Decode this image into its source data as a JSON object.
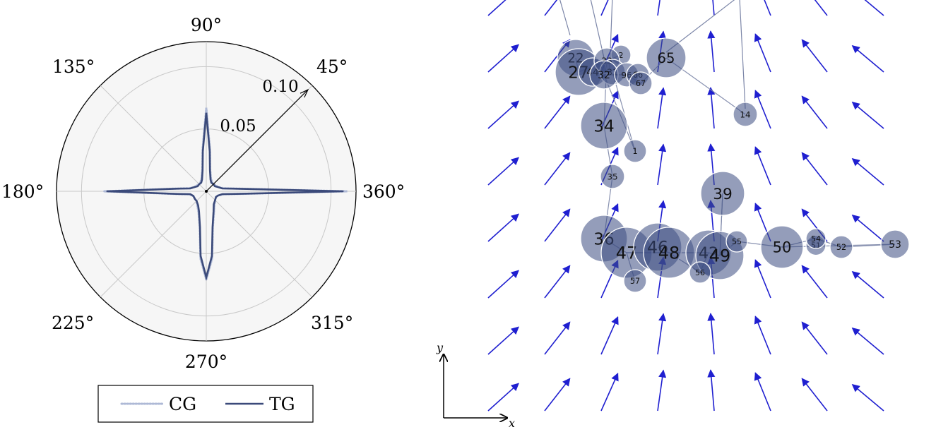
{
  "chart_data": [
    {
      "type": "polar-line",
      "angle_ticks": [
        "90°",
        "45°",
        "360°",
        "315°",
        "270°",
        "225°",
        "180°",
        "135°"
      ],
      "angle_tick_values": [
        90,
        45,
        0,
        315,
        270,
        225,
        180,
        135
      ],
      "r_ticks": [
        "0.05",
        "0.10"
      ],
      "r_tick_values": [
        0.05,
        0.1
      ],
      "rlim": [
        0,
        0.12
      ],
      "grid": true,
      "legend_position": "bottom",
      "series": [
        {
          "name": "CG",
          "style": "dotted",
          "color": "#aeb9d6",
          "points": [
            [
              0,
              0.113
            ],
            [
              5,
              0.025
            ],
            [
              10,
              0.014
            ],
            [
              20,
              0.01
            ],
            [
              30,
              0.009
            ],
            [
              45,
              0.008
            ],
            [
              60,
              0.009
            ],
            [
              70,
              0.011
            ],
            [
              80,
              0.018
            ],
            [
              85,
              0.034
            ],
            [
              90,
              0.067
            ],
            [
              95,
              0.034
            ],
            [
              100,
              0.018
            ],
            [
              110,
              0.011
            ],
            [
              120,
              0.009
            ],
            [
              135,
              0.008
            ],
            [
              150,
              0.009
            ],
            [
              160,
              0.01
            ],
            [
              170,
              0.014
            ],
            [
              175,
              0.025
            ],
            [
              180,
              0.082
            ],
            [
              185,
              0.025
            ],
            [
              190,
              0.014
            ],
            [
              200,
              0.011
            ],
            [
              215,
              0.011
            ],
            [
              225,
              0.011
            ],
            [
              240,
              0.014
            ],
            [
              250,
              0.018
            ],
            [
              260,
              0.03
            ],
            [
              265,
              0.054
            ],
            [
              270,
              0.071
            ],
            [
              275,
              0.054
            ],
            [
              280,
              0.03
            ],
            [
              290,
              0.018
            ],
            [
              300,
              0.013
            ],
            [
              315,
              0.01
            ],
            [
              330,
              0.009
            ],
            [
              340,
              0.01
            ],
            [
              350,
              0.014
            ],
            [
              355,
              0.025
            ]
          ]
        },
        {
          "name": "TG",
          "style": "solid",
          "color": "#3b4a7a",
          "points": [
            [
              0,
              0.11
            ],
            [
              5,
              0.024
            ],
            [
              10,
              0.013
            ],
            [
              20,
              0.01
            ],
            [
              30,
              0.008
            ],
            [
              45,
              0.008
            ],
            [
              60,
              0.008
            ],
            [
              70,
              0.01
            ],
            [
              80,
              0.017
            ],
            [
              85,
              0.032
            ],
            [
              90,
              0.063
            ],
            [
              95,
              0.032
            ],
            [
              100,
              0.017
            ],
            [
              110,
              0.01
            ],
            [
              120,
              0.008
            ],
            [
              135,
              0.008
            ],
            [
              150,
              0.008
            ],
            [
              160,
              0.01
            ],
            [
              170,
              0.013
            ],
            [
              175,
              0.024
            ],
            [
              180,
              0.08
            ],
            [
              185,
              0.024
            ],
            [
              190,
              0.013
            ],
            [
              200,
              0.011
            ],
            [
              215,
              0.011
            ],
            [
              225,
              0.011
            ],
            [
              240,
              0.013
            ],
            [
              250,
              0.017
            ],
            [
              260,
              0.029
            ],
            [
              265,
              0.052
            ],
            [
              270,
              0.069
            ],
            [
              275,
              0.052
            ],
            [
              280,
              0.029
            ],
            [
              290,
              0.017
            ],
            [
              300,
              0.012
            ],
            [
              315,
              0.01
            ],
            [
              330,
              0.009
            ],
            [
              340,
              0.01
            ],
            [
              350,
              0.013
            ],
            [
              355,
              0.024
            ]
          ]
        }
      ]
    },
    {
      "type": "network-vector-field",
      "axis_labels": {
        "x": "x",
        "y": "y"
      },
      "arrow_color": "#1f1fd0",
      "node_color": "#3c4c82",
      "edge_color": "#7c86a8",
      "vector_field": {
        "columns": 8,
        "rows": 8,
        "angles_deg": [
          42,
          52,
          66,
          82,
          95,
          112,
          128,
          140
        ]
      },
      "nodes": [
        {
          "id": "1",
          "x": 2.55,
          "y": 4.55,
          "size": 16
        },
        {
          "id": "2",
          "x": 2.3,
          "y": 6.25,
          "size": 14
        },
        {
          "id": "14",
          "x": 4.5,
          "y": 5.2,
          "size": 17
        },
        {
          "id": "22",
          "x": 1.5,
          "y": 6.2,
          "size": 26
        },
        {
          "id": "27",
          "x": 1.55,
          "y": 5.95,
          "size": 33
        },
        {
          "id": "44",
          "x": 1.8,
          "y": 5.95,
          "size": 20
        },
        {
          "id": "33",
          "x": 2.05,
          "y": 6.15,
          "size": 18
        },
        {
          "id": "31",
          "x": 2.15,
          "y": 5.95,
          "size": 18
        },
        {
          "id": "32",
          "x": 2.0,
          "y": 5.9,
          "size": 20
        },
        {
          "id": "96",
          "x": 2.4,
          "y": 5.9,
          "size": 17
        },
        {
          "id": "66",
          "x": 2.6,
          "y": 5.9,
          "size": 16
        },
        {
          "id": "67",
          "x": 2.65,
          "y": 5.75,
          "size": 16
        },
        {
          "id": "65",
          "x": 3.1,
          "y": 6.2,
          "size": 28
        },
        {
          "id": "34",
          "x": 2.0,
          "y": 5.0,
          "size": 33
        },
        {
          "id": "35",
          "x": 2.15,
          "y": 4.1,
          "size": 17
        },
        {
          "id": "39",
          "x": 4.1,
          "y": 3.8,
          "size": 31
        },
        {
          "id": "36",
          "x": 2.0,
          "y": 3.0,
          "size": 33
        },
        {
          "id": "47",
          "x": 2.4,
          "y": 2.75,
          "size": 36
        },
        {
          "id": "46",
          "x": 2.95,
          "y": 2.85,
          "size": 34
        },
        {
          "id": "48",
          "x": 3.15,
          "y": 2.75,
          "size": 36
        },
        {
          "id": "42",
          "x": 3.85,
          "y": 2.75,
          "size": 32
        },
        {
          "id": "49",
          "x": 4.05,
          "y": 2.7,
          "size": 34
        },
        {
          "id": "55",
          "x": 4.35,
          "y": 2.95,
          "size": 15
        },
        {
          "id": "56",
          "x": 3.7,
          "y": 2.4,
          "size": 15
        },
        {
          "id": "57",
          "x": 2.55,
          "y": 2.25,
          "size": 16
        },
        {
          "id": "50",
          "x": 5.15,
          "y": 2.85,
          "size": 30
        },
        {
          "id": "51",
          "x": 5.75,
          "y": 2.88,
          "size": 14
        },
        {
          "id": "54",
          "x": 5.75,
          "y": 3.0,
          "size": 14
        },
        {
          "id": "52",
          "x": 6.2,
          "y": 2.85,
          "size": 16
        },
        {
          "id": "53",
          "x": 7.15,
          "y": 2.9,
          "size": 20
        }
      ],
      "edges": [
        [
          "27",
          "33"
        ],
        [
          "27",
          "22"
        ],
        [
          "33",
          "2"
        ],
        [
          "32",
          "96"
        ],
        [
          "96",
          "67"
        ],
        [
          "67",
          "65"
        ],
        [
          "65",
          "14"
        ],
        [
          "34",
          "35"
        ],
        [
          "35",
          "36"
        ],
        [
          "36",
          "47"
        ],
        [
          "47",
          "57"
        ],
        [
          "47",
          "48"
        ],
        [
          "48",
          "46"
        ],
        [
          "48",
          "56"
        ],
        [
          "56",
          "42"
        ],
        [
          "42",
          "49"
        ],
        [
          "49",
          "55"
        ],
        [
          "49",
          "39"
        ],
        [
          "39",
          "49"
        ],
        [
          "55",
          "50"
        ],
        [
          "50",
          "54"
        ],
        [
          "54",
          "52"
        ],
        [
          "52",
          "53"
        ],
        [
          "50",
          "53"
        ],
        [
          "47",
          "42"
        ],
        [
          "33",
          "34"
        ],
        [
          "1",
          "32"
        ],
        [
          "31",
          "1"
        ]
      ]
    }
  ]
}
